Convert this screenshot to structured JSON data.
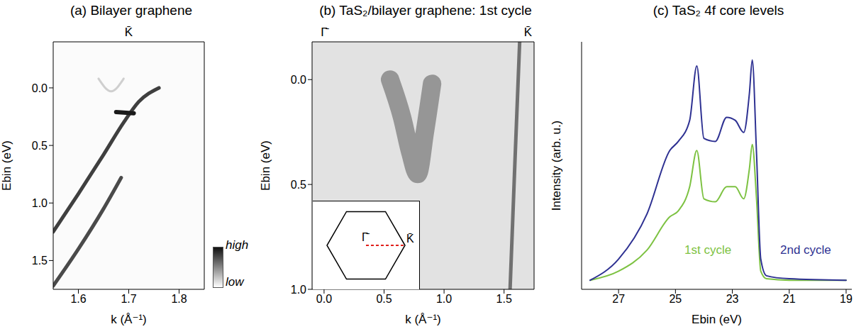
{
  "chart_data": [
    {
      "type": "line",
      "title": "(a) Bilayer graphene",
      "x_label": "k (Å⁻¹)",
      "y_label": "Ebin (eV)",
      "xlim": [
        1.55,
        1.85
      ],
      "xticks": [
        1.6,
        1.7,
        1.8
      ],
      "ylim": [
        1.75,
        -0.4
      ],
      "yticks": [
        {
          "value": 0,
          "label": "0.0"
        },
        0.5,
        {
          "value": 1,
          "label": "1.0"
        },
        1.5
      ],
      "high_symmetry_points": [
        {
          "value": 1.7,
          "label": "K̄"
        }
      ],
      "grid": false,
      "series": [
        {
          "color": "#2a2a2a",
          "x": [
            1.55,
            1.6,
            1.65,
            1.69,
            1.72,
            1.76
          ],
          "values": [
            1.25,
            0.92,
            0.58,
            0.3,
            0.12,
            0.0
          ]
        },
        {
          "color": "#2a2a2a",
          "x": [
            1.55,
            1.6,
            1.65,
            1.685
          ],
          "values": [
            1.72,
            1.4,
            1.05,
            0.78
          ]
        },
        {
          "color": "#1a1a1a",
          "x": [
            1.675,
            1.71
          ],
          "values": [
            0.21,
            0.22
          ]
        },
        {
          "color": "#c4c4c4",
          "x": [
            1.64,
            1.665,
            1.69
          ],
          "values": [
            -0.08,
            0.03,
            -0.08
          ]
        }
      ],
      "colorbar": {
        "labels": [
          "high",
          "low"
        ]
      }
    },
    {
      "type": "line",
      "title": "(b) TaS₂/bilayer graphene: 1st cycle",
      "x_label": "k (Å⁻¹)",
      "y_label": "Ebin (eV)",
      "xlim": [
        -0.1,
        1.75
      ],
      "xticks": [
        {
          "value": 0,
          "label": "0.0"
        },
        0.5,
        {
          "value": 1,
          "label": "1.0"
        },
        1.5
      ],
      "ylim": [
        1.0,
        -0.18
      ],
      "yticks": [
        {
          "value": 0,
          "label": "0.0"
        },
        0.5,
        {
          "value": 1,
          "label": "1.0"
        }
      ],
      "high_symmetry_points": [
        {
          "value": 0,
          "label": "Γ̄"
        },
        {
          "value": 1.7,
          "label": "K̄"
        }
      ],
      "grid": false,
      "series": [
        {
          "color": "#3a3a3a",
          "x": [
            0.55,
            0.65,
            0.72,
            0.78,
            0.84,
            0.9
          ],
          "values": [
            0.0,
            0.18,
            0.35,
            0.45,
            0.25,
            0.02
          ]
        },
        {
          "color": "#555555",
          "x": [
            1.63,
            1.59,
            1.55
          ],
          "values": [
            -0.18,
            0.4,
            1.0
          ]
        }
      ],
      "inset": {
        "labels": [
          "Γ̄",
          "K̄"
        ],
        "color": "#e0201b"
      }
    },
    {
      "type": "line",
      "title": "(c) TaS₂ 4f core levels",
      "x_label": "Ebin (eV)",
      "y_label": "Intensity (arb. u.)",
      "xlim": [
        28.3,
        18.8
      ],
      "xticks": [
        27,
        25,
        23,
        21,
        19
      ],
      "ylim": [
        0,
        8.2
      ],
      "yticks": [],
      "tick_labels": "x",
      "grid": false,
      "x": [
        28,
        27,
        26,
        25.2,
        24.9,
        24.5,
        24.25,
        24.0,
        23.6,
        23.2,
        22.9,
        22.6,
        22.4,
        22.3,
        22.15,
        22.0,
        21.8,
        21,
        19
      ],
      "series": [
        {
          "name": "1st cycle",
          "color": "#7dc242",
          "values": [
            0.3,
            0.6,
            1.3,
            2.4,
            2.6,
            3.4,
            4.6,
            3.0,
            2.9,
            3.4,
            3.4,
            3.0,
            4.0,
            4.8,
            3.0,
            0.6,
            0.35,
            0.3,
            0.3
          ]
        },
        {
          "name": "2nd cycle",
          "color": "#2e3192",
          "values": [
            0.3,
            1.0,
            2.5,
            4.6,
            4.9,
            5.6,
            7.4,
            5.0,
            4.9,
            5.7,
            5.6,
            5.2,
            6.5,
            7.6,
            4.5,
            1.0,
            0.45,
            0.35,
            0.3
          ]
        }
      ]
    }
  ]
}
